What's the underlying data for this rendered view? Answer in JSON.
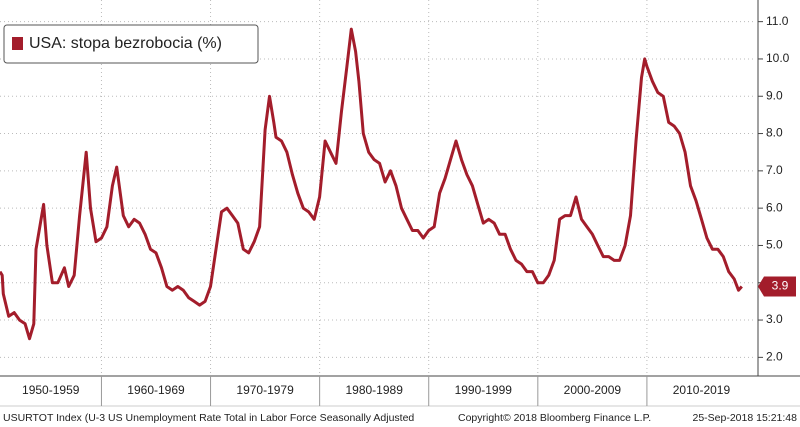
{
  "chart_data": {
    "type": "line",
    "title": "USA: stopa bezrobocia (%)",
    "footer": [
      "USURTOT Index (U-3 US Unemployment Rate Total in Labor Force Seasonally Adjusted",
      "Copyright© 2018 Bloomberg Finance L.P.",
      "25-Sep-2018 15:21:48"
    ],
    "x": [
      1950.7,
      1950.9,
      1951.0,
      1951.5,
      1952.0,
      1952.5,
      1953.0,
      1953.4,
      1953.8,
      1954.0,
      1954.7,
      1955.0,
      1955.5,
      1956.0,
      1956.6,
      1957.0,
      1957.5,
      1958.0,
      1958.6,
      1959.0,
      1959.5,
      1960.0,
      1960.5,
      1961.0,
      1961.4,
      1962.0,
      1962.5,
      1963.0,
      1963.5,
      1964.0,
      1964.5,
      1965.0,
      1965.5,
      1966.0,
      1966.5,
      1967.0,
      1967.5,
      1968.0,
      1968.5,
      1969.0,
      1969.5,
      1970.0,
      1970.5,
      1971.0,
      1971.5,
      1972.0,
      1972.5,
      1973.0,
      1973.5,
      1974.0,
      1974.5,
      1975.0,
      1975.4,
      1975.8,
      1976.0,
      1976.5,
      1977.0,
      1977.5,
      1978.0,
      1978.5,
      1979.0,
      1979.5,
      1980.0,
      1980.5,
      1981.0,
      1981.5,
      1982.0,
      1982.5,
      1982.9,
      1983.3,
      1983.6,
      1984.0,
      1984.5,
      1985.0,
      1985.5,
      1986.0,
      1986.5,
      1987.0,
      1987.5,
      1988.0,
      1988.5,
      1989.0,
      1989.5,
      1990.0,
      1990.5,
      1991.0,
      1991.5,
      1992.0,
      1992.5,
      1993.0,
      1993.5,
      1994.0,
      1994.5,
      1995.0,
      1995.5,
      1996.0,
      1996.5,
      1997.0,
      1997.5,
      1998.0,
      1998.5,
      1999.0,
      1999.5,
      2000.0,
      2000.5,
      2001.0,
      2001.5,
      2002.0,
      2002.5,
      2003.0,
      2003.5,
      2004.0,
      2004.5,
      2005.0,
      2005.5,
      2006.0,
      2006.5,
      2007.0,
      2007.5,
      2008.0,
      2008.5,
      2009.0,
      2009.5,
      2009.8,
      2010.0,
      2010.5,
      2011.0,
      2011.5,
      2012.0,
      2012.5,
      2013.0,
      2013.5,
      2014.0,
      2014.5,
      2015.0,
      2015.5,
      2016.0,
      2016.5,
      2017.0,
      2017.5,
      2018.0,
      2018.4,
      2018.7
    ],
    "series": [
      {
        "name": "USA: stopa bezrobocia (%)",
        "color": "#a31d2b",
        "values": [
          4.3,
          4.2,
          3.7,
          3.1,
          3.2,
          3.0,
          2.9,
          2.5,
          2.9,
          4.9,
          6.1,
          5.0,
          4.0,
          4.0,
          4.4,
          3.9,
          4.2,
          5.8,
          7.5,
          6.0,
          5.1,
          5.2,
          5.5,
          6.6,
          7.1,
          5.8,
          5.5,
          5.7,
          5.6,
          5.3,
          4.9,
          4.8,
          4.4,
          3.9,
          3.8,
          3.9,
          3.8,
          3.6,
          3.5,
          3.4,
          3.5,
          3.9,
          4.9,
          5.9,
          6.0,
          5.8,
          5.6,
          4.9,
          4.8,
          5.1,
          5.5,
          8.1,
          9.0,
          8.3,
          7.9,
          7.8,
          7.5,
          6.9,
          6.4,
          6.0,
          5.9,
          5.7,
          6.3,
          7.8,
          7.5,
          7.2,
          8.6,
          9.8,
          10.8,
          10.2,
          9.4,
          8.0,
          7.5,
          7.3,
          7.2,
          6.7,
          7.0,
          6.6,
          6.0,
          5.7,
          5.4,
          5.4,
          5.2,
          5.4,
          5.5,
          6.4,
          6.8,
          7.3,
          7.8,
          7.3,
          6.9,
          6.6,
          6.1,
          5.6,
          5.7,
          5.6,
          5.3,
          5.3,
          4.9,
          4.6,
          4.5,
          4.3,
          4.3,
          4.0,
          4.0,
          4.2,
          4.6,
          5.7,
          5.8,
          5.8,
          6.3,
          5.7,
          5.5,
          5.3,
          5.0,
          4.7,
          4.7,
          4.6,
          4.6,
          5.0,
          5.8,
          7.8,
          9.5,
          10.0,
          9.8,
          9.4,
          9.1,
          9.0,
          8.3,
          8.2,
          8.0,
          7.5,
          6.6,
          6.2,
          5.7,
          5.2,
          4.9,
          4.9,
          4.7,
          4.3,
          4.1,
          3.8,
          3.9
        ]
      }
    ],
    "xlim": [
      1950.7,
      2020
    ],
    "xticks": [
      {
        "value": 1950,
        "label": "1950-1959"
      },
      {
        "value": 1960,
        "label": "1960-1969"
      },
      {
        "value": 1970,
        "label": "1970-1979"
      },
      {
        "value": 1980,
        "label": "1980-1989"
      },
      {
        "value": 1990,
        "label": "1990-1999"
      },
      {
        "value": 2000,
        "label": "2000-2009"
      },
      {
        "value": 2010,
        "label": "2010-2019"
      }
    ],
    "ylim": [
      1.5,
      11.5
    ],
    "yticks": [
      {
        "value": 2,
        "label": "2.0"
      },
      {
        "value": 3,
        "label": "3.0"
      },
      {
        "value": 4,
        "label": "4.0"
      },
      {
        "value": 5,
        "label": "5.0"
      },
      {
        "value": 6,
        "label": "6.0"
      },
      {
        "value": 7,
        "label": "7.0"
      },
      {
        "value": 8,
        "label": "8.0"
      },
      {
        "value": 9,
        "label": "9.0"
      },
      {
        "value": 10,
        "label": "10.0"
      },
      {
        "value": 11,
        "label": "11.0"
      }
    ],
    "grid": true,
    "legend": "upper left"
  }
}
